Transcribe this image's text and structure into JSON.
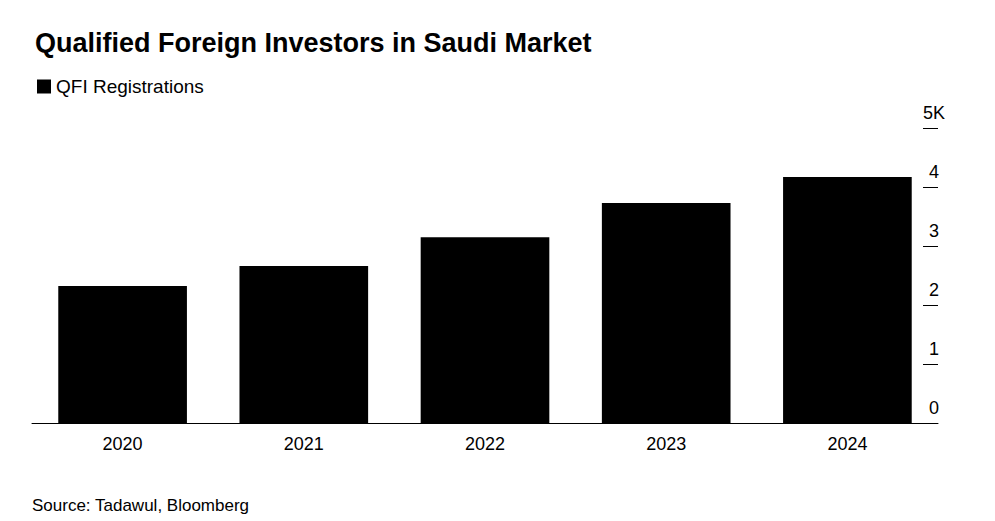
{
  "chart_data": {
    "type": "bar",
    "title": "Qualified Foreign Investors in Saudi Market",
    "source": "Source: Tadawul, Bloomberg",
    "categories": [
      "2020",
      "2021",
      "2022",
      "2023",
      "2024"
    ],
    "series": [
      {
        "name": "QFI Registrations",
        "color": "#000000",
        "values": [
          2.32,
          2.66,
          3.15,
          3.73,
          4.17
        ]
      }
    ],
    "ylim": [
      0,
      5
    ],
    "yticks": [
      0,
      1,
      2,
      3,
      4,
      {
        "value": 5,
        "label": "5K"
      }
    ],
    "grid": false,
    "legend": "top-left"
  }
}
